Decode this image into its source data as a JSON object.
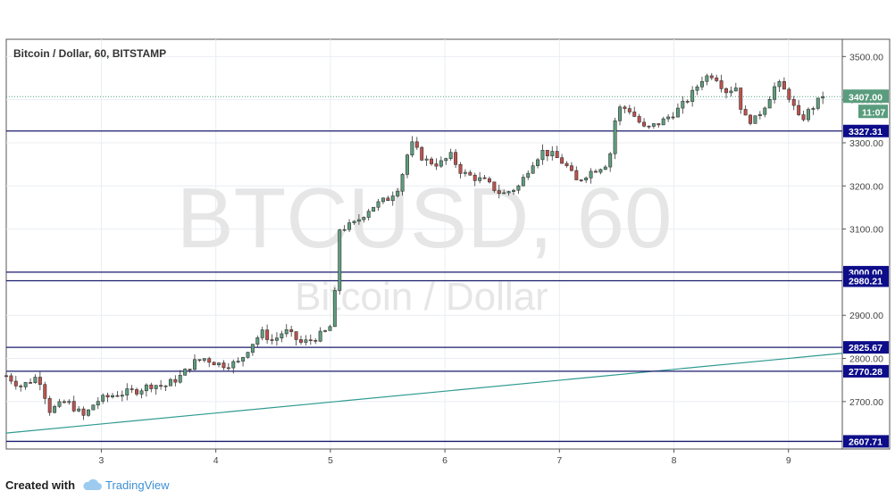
{
  "chart_data": {
    "type": "candlestick",
    "title": "Bitcoin / Dollar, 60, BITSTAMP",
    "watermark_symbol": "BTCUSD, 60",
    "watermark_name": "Bitcoin / Dollar",
    "x_tick_labels": [
      "3",
      "4",
      "5",
      "6",
      "7",
      "8",
      "9"
    ],
    "x_tick_values": [
      3,
      4,
      5,
      6,
      7,
      8,
      9
    ],
    "xlim": [
      2.17,
      9.47
    ],
    "ylim": [
      2590,
      3540
    ],
    "y_ticks": [
      2700,
      2800,
      2900,
      3000,
      3100,
      3200,
      3300,
      3400,
      3500
    ],
    "y_tick_labels": [
      "2700.00",
      "2800.00",
      "2900.00",
      "3000.00",
      "3100.00",
      "3200.00",
      "3300.00",
      "3400.00",
      "3500.00"
    ],
    "horizontal_levels": [
      {
        "value": 3327.31,
        "label": "3327.31"
      },
      {
        "value": 3000.0,
        "label": "3000.00"
      },
      {
        "value": 2980.21,
        "label": "2980.21"
      },
      {
        "value": 2825.67,
        "label": "2825.67"
      },
      {
        "value": 2770.28,
        "label": "2770.28"
      },
      {
        "value": 2607.71,
        "label": "2607.71"
      }
    ],
    "trend_line": {
      "x": [
        2.17,
        9.47
      ],
      "y": [
        2627,
        2812
      ]
    },
    "current_price": {
      "value": 3407.0,
      "label": "3407.00",
      "countdown": "11:07"
    },
    "price_path": [
      [
        2.17,
        2760
      ],
      [
        2.3,
        2735
      ],
      [
        2.45,
        2760
      ],
      [
        2.55,
        2680
      ],
      [
        2.7,
        2700
      ],
      [
        2.85,
        2665
      ],
      [
        2.95,
        2700
      ],
      [
        3.1,
        2715
      ],
      [
        3.3,
        2725
      ],
      [
        3.45,
        2740
      ],
      [
        3.55,
        2735
      ],
      [
        3.7,
        2760
      ],
      [
        3.8,
        2790
      ],
      [
        3.9,
        2800
      ],
      [
        4.05,
        2785
      ],
      [
        4.2,
        2790
      ],
      [
        4.3,
        2830
      ],
      [
        4.4,
        2860
      ],
      [
        4.5,
        2840
      ],
      [
        4.6,
        2865
      ],
      [
        4.75,
        2835
      ],
      [
        4.85,
        2845
      ],
      [
        4.95,
        2860
      ],
      [
        5.02,
        2880
      ],
      [
        5.08,
        3100
      ],
      [
        5.2,
        3110
      ],
      [
        5.35,
        3150
      ],
      [
        5.5,
        3170
      ],
      [
        5.6,
        3200
      ],
      [
        5.7,
        3300
      ],
      [
        5.82,
        3260
      ],
      [
        5.95,
        3250
      ],
      [
        6.05,
        3270
      ],
      [
        6.15,
        3230
      ],
      [
        6.25,
        3220
      ],
      [
        6.35,
        3210
      ],
      [
        6.5,
        3180
      ],
      [
        6.65,
        3200
      ],
      [
        6.75,
        3250
      ],
      [
        6.85,
        3280
      ],
      [
        6.95,
        3270
      ],
      [
        7.05,
        3250
      ],
      [
        7.15,
        3210
      ],
      [
        7.25,
        3230
      ],
      [
        7.4,
        3250
      ],
      [
        7.45,
        3280
      ],
      [
        7.5,
        3380
      ],
      [
        7.6,
        3380
      ],
      [
        7.75,
        3330
      ],
      [
        7.9,
        3350
      ],
      [
        8.05,
        3380
      ],
      [
        8.15,
        3410
      ],
      [
        8.25,
        3450
      ],
      [
        8.35,
        3460
      ],
      [
        8.45,
        3420
      ],
      [
        8.55,
        3430
      ],
      [
        8.6,
        3360
      ],
      [
        8.7,
        3350
      ],
      [
        8.8,
        3390
      ],
      [
        8.9,
        3440
      ],
      [
        9.0,
        3410
      ],
      [
        9.1,
        3350
      ],
      [
        9.2,
        3380
      ],
      [
        9.3,
        3407
      ]
    ]
  },
  "footer": {
    "created_with": "Created with",
    "brand": "TradingView"
  }
}
